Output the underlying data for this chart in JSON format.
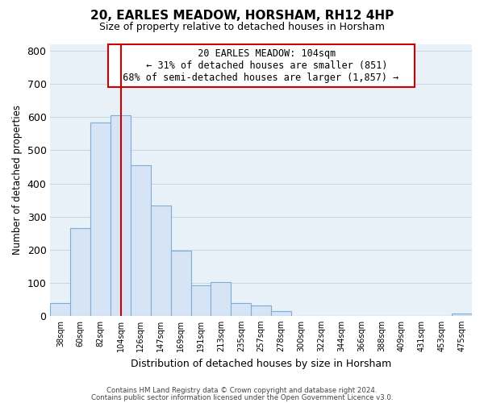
{
  "title": "20, EARLES MEADOW, HORSHAM, RH12 4HP",
  "subtitle": "Size of property relative to detached houses in Horsham",
  "xlabel": "Distribution of detached houses by size in Horsham",
  "ylabel": "Number of detached properties",
  "categories": [
    "38sqm",
    "60sqm",
    "82sqm",
    "104sqm",
    "126sqm",
    "147sqm",
    "169sqm",
    "191sqm",
    "213sqm",
    "235sqm",
    "257sqm",
    "278sqm",
    "300sqm",
    "322sqm",
    "344sqm",
    "366sqm",
    "388sqm",
    "409sqm",
    "431sqm",
    "453sqm",
    "475sqm"
  ],
  "values": [
    38,
    265,
    585,
    605,
    455,
    333,
    197,
    91,
    101,
    38,
    32,
    14,
    0,
    0,
    0,
    0,
    0,
    0,
    0,
    0,
    8
  ],
  "bar_color": "#d6e4f5",
  "bar_edge_color": "#7bafd4",
  "vline_x_index": 3,
  "vline_color": "#cc0000",
  "annotation_title": "20 EARLES MEADOW: 104sqm",
  "annotation_line1": "← 31% of detached houses are smaller (851)",
  "annotation_line2": "68% of semi-detached houses are larger (1,857) →",
  "annotation_box_color": "#ffffff",
  "annotation_box_edge": "#cc0000",
  "ylim": [
    0,
    820
  ],
  "yticks": [
    0,
    100,
    200,
    300,
    400,
    500,
    600,
    700,
    800
  ],
  "footer1": "Contains HM Land Registry data © Crown copyright and database right 2024.",
  "footer2": "Contains public sector information licensed under the Open Government Licence v3.0.",
  "bg_color": "#ffffff",
  "plot_bg_color": "#e8f0f8",
  "grid_color": "#c8d4e0"
}
